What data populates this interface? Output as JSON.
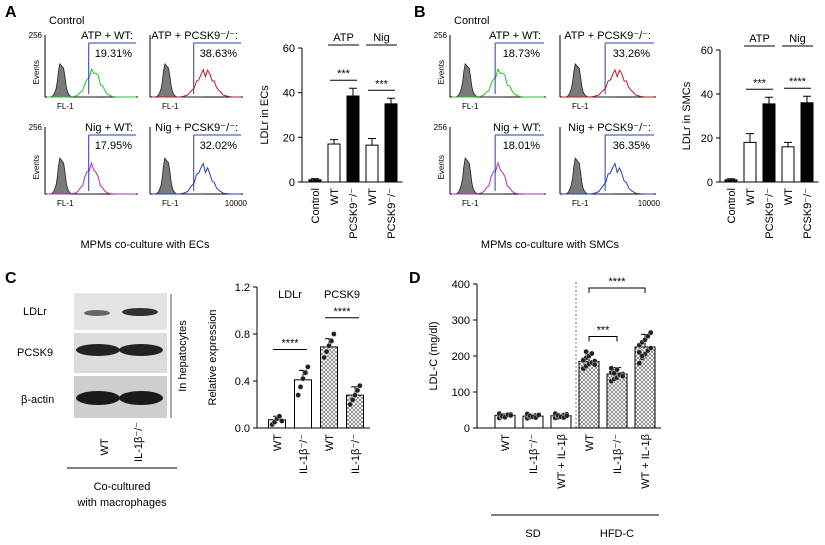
{
  "panels": {
    "a": "A",
    "b": "B",
    "c": "C",
    "d": "D"
  },
  "flow_a": {
    "y_max": "256",
    "y_label": "Events",
    "x_label": "FL-1",
    "x_max": "10000",
    "control_label": "Control",
    "tiles": [
      {
        "title": "ATP + WT:",
        "pct": "19.31%",
        "color": "#23c423"
      },
      {
        "title": "ATP + PCSK9⁻/⁻:",
        "pct": "38.63%",
        "color": "#c21a24"
      },
      {
        "title": "Nig + WT:",
        "pct": "17.95%",
        "color": "#b22bc0"
      },
      {
        "title": "Nig + PCSK9⁻/⁻:",
        "pct": "32.02%",
        "color": "#2a3fb0"
      }
    ],
    "caption": "MPMs co-culture with ECs"
  },
  "flow_b": {
    "y_max": "256",
    "y_label": "Events",
    "x_label": "FL-1",
    "x_max": "10000",
    "control_label": "Control",
    "tiles": [
      {
        "title": "ATP + WT:",
        "pct": "18.73%",
        "color": "#23c423"
      },
      {
        "title": "ATP + PCSK9⁻/⁻:",
        "pct": "33.26%",
        "color": "#c21a24"
      },
      {
        "title": "Nig + WT:",
        "pct": "18.01%",
        "color": "#b22bc0"
      },
      {
        "title": "Nig + PCSK9⁻/⁻:",
        "pct": "36.35%",
        "color": "#2a3fb0"
      }
    ],
    "caption": "MPMs co-culture with SMCs"
  },
  "blot": {
    "bands": [
      "LDLr",
      "PCSK9",
      "β-actin"
    ],
    "lanes": [
      "WT",
      "IL-1β⁻/⁻"
    ],
    "side_label": "In hepatocytes",
    "caption_line1": "Co-cultured",
    "caption_line2": "with macrophages"
  },
  "chart_data": [
    {
      "type": "bar",
      "ylabel": "LDLr in ECs",
      "ylim": [
        0,
        60
      ],
      "yticks": [
        "0",
        "20",
        "40",
        "60"
      ],
      "categories": [
        "Control",
        "WT",
        "PCSK9⁻/⁻",
        "WT",
        "PCSK9⁻/⁻"
      ],
      "values": [
        1,
        17,
        38.5,
        16.5,
        35
      ],
      "errors": [
        0.5,
        2,
        3.5,
        3,
        2.5
      ],
      "fills": [
        "#000",
        "#fff",
        "#000",
        "#fff",
        "#000"
      ],
      "groups": [
        {
          "label": "ATP",
          "from": 1,
          "to": 2
        },
        {
          "label": "Nig",
          "from": 3,
          "to": 4
        }
      ],
      "sig": [
        {
          "label": "***",
          "from": 1,
          "to": 2
        },
        {
          "label": "***",
          "from": 3,
          "to": 4
        }
      ]
    },
    {
      "type": "bar",
      "ylabel": "LDLr in SMCs",
      "ylim": [
        0,
        60
      ],
      "yticks": [
        "0",
        "20",
        "40",
        "60"
      ],
      "categories": [
        "Control",
        "WT",
        "PCSK9⁻/⁻",
        "WT",
        "PCSK9⁻/⁻"
      ],
      "values": [
        1,
        18,
        35.5,
        16,
        36
      ],
      "errors": [
        0.5,
        4,
        3,
        2,
        3
      ],
      "fills": [
        "#000",
        "#fff",
        "#000",
        "#fff",
        "#000"
      ],
      "groups": [
        {
          "label": "ATP",
          "from": 1,
          "to": 2
        },
        {
          "label": "Nig",
          "from": 3,
          "to": 4
        }
      ],
      "sig": [
        {
          "label": "***",
          "from": 1,
          "to": 2
        },
        {
          "label": "****",
          "from": 3,
          "to": 4
        }
      ]
    },
    {
      "type": "bar",
      "ylabel": "Relative expression",
      "ylim": [
        0,
        1.2
      ],
      "yticks": [
        "0.0",
        "0.4",
        "0.8",
        "1.2"
      ],
      "categories": [
        "WT",
        "IL-1β⁻/⁻",
        "WT",
        "IL-1β⁻/⁻"
      ],
      "values": [
        0.07,
        0.41,
        0.69,
        0.28
      ],
      "errors": [
        0.03,
        0.08,
        0.07,
        0.07
      ],
      "fills": [
        "#fff",
        "#fff",
        "pattern",
        "pattern"
      ],
      "points": [
        [
          0.03,
          0.05,
          0.08,
          0.1,
          0.06
        ],
        [
          0.28,
          0.35,
          0.42,
          0.47,
          0.52
        ],
        [
          0.6,
          0.65,
          0.7,
          0.74,
          0.8
        ],
        [
          0.2,
          0.24,
          0.28,
          0.32,
          0.36
        ]
      ],
      "groups": [
        {
          "label": "LDLr",
          "from": 0,
          "to": 1
        },
        {
          "label": "PCSK9",
          "from": 2,
          "to": 3
        }
      ],
      "sig": [
        {
          "label": "****",
          "from": 0,
          "to": 1
        },
        {
          "label": "****",
          "from": 2,
          "to": 3
        }
      ]
    },
    {
      "type": "bar",
      "ylabel": "LDL-C (mg/dl)",
      "ylim": [
        0,
        400
      ],
      "yticks": [
        "0",
        "100",
        "200",
        "300",
        "400"
      ],
      "categories": [
        "WT",
        "IL-1β⁻/⁻",
        "WT + IL-1β",
        "WT",
        "IL-1β⁻/⁻",
        "WT + IL-1β"
      ],
      "values": [
        35,
        33,
        34,
        185,
        150,
        225
      ],
      "errors": [
        5,
        5,
        5,
        20,
        18,
        35
      ],
      "fills": [
        "#fff",
        "#fff",
        "#fff",
        "pattern",
        "pattern",
        "pattern"
      ],
      "points": [
        [
          28,
          31,
          34,
          36,
          38,
          40,
          33,
          30,
          37,
          35
        ],
        [
          27,
          30,
          32,
          35,
          37,
          39,
          34,
          31,
          29,
          36
        ],
        [
          28,
          30,
          33,
          36,
          38,
          40,
          35,
          31,
          29,
          34
        ],
        [
          165,
          172,
          178,
          182,
          186,
          190,
          195,
          200,
          207,
          176,
          188,
          212
        ],
        [
          130,
          136,
          140,
          146,
          150,
          154,
          158,
          162,
          148,
          144,
          166,
          152
        ],
        [
          180,
          195,
          205,
          215,
          222,
          230,
          238,
          245,
          255,
          265,
          210,
          200
        ]
      ],
      "groups": [
        {
          "label": "SD",
          "from": 0,
          "to": 2
        },
        {
          "label": "HFD-C",
          "from": 3,
          "to": 5
        }
      ],
      "sig": [
        {
          "label": "***",
          "from": 3,
          "to": 4
        },
        {
          "label": "****",
          "from": 3,
          "to": 5
        }
      ]
    }
  ]
}
